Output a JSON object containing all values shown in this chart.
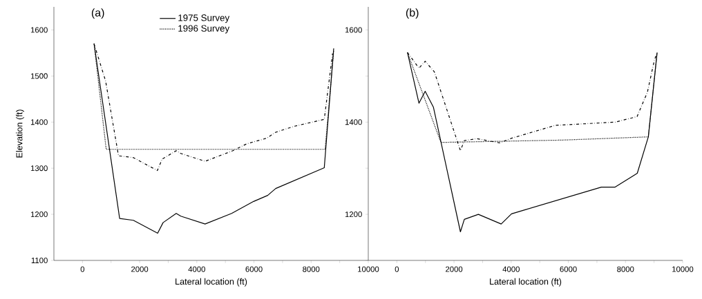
{
  "chart_data": [
    {
      "type": "line",
      "title": "(a)",
      "xlabel": "Lateral location (ft)",
      "ylabel": "Elevation (ft)",
      "xlim": [
        -1000,
        10000
      ],
      "ylim": [
        1100,
        1650
      ],
      "xticks": [
        0,
        {
          "value": 1000,
          "label": null
        },
        2000,
        {
          "value": 3000,
          "label": null
        },
        4000,
        {
          "value": 5000,
          "label": null
        },
        6000,
        {
          "value": 7000,
          "label": null
        },
        8000,
        {
          "value": 9000,
          "label": null
        },
        10000
      ],
      "yticks": [
        1100,
        1200,
        1300,
        1400,
        1500,
        1600
      ],
      "legend": "top",
      "grid": false,
      "series": [
        {
          "name": "1975 Survey",
          "color": "#000000",
          "line_style": "solid",
          "x": [
            405,
            1300,
            1780,
            2630,
            2820,
            3280,
            3440,
            4290,
            5220,
            5990,
            6480,
            6760,
            8460,
            8790
          ],
          "values": [
            1570,
            1191,
            1187,
            1159,
            1182,
            1202,
            1196,
            1179,
            1202,
            1228,
            1241,
            1256,
            1301,
            1560
          ]
        },
        {
          "name": "1996 Survey",
          "color": "#000000",
          "line_style": "dotted",
          "x": [
            405,
            830,
            8490,
            8790
          ],
          "values": [
            1570,
            1341,
            1341,
            1555
          ]
        },
        {
          "color": "#000000",
          "line_style": "dashdot",
          "x": [
            405,
            810,
            1260,
            1780,
            2620,
            2790,
            3280,
            3440,
            4290,
            5260,
            5750,
            6440,
            6760,
            7410,
            8460,
            8750
          ],
          "values": [
            1570,
            1489,
            1327,
            1323,
            1295,
            1320,
            1338,
            1332,
            1315,
            1338,
            1353,
            1365,
            1378,
            1391,
            1406,
            1549
          ]
        }
      ]
    },
    {
      "type": "line",
      "title": "(b)",
      "xlabel": "Lateral location (ft)",
      "xlim": [
        -1000,
        10000
      ],
      "ylim": [
        1100,
        1650
      ],
      "xticks": [
        0,
        {
          "value": 1000,
          "label": null
        },
        2000,
        {
          "value": 3000,
          "label": null
        },
        4000,
        {
          "value": 5000,
          "label": null
        },
        6000,
        {
          "value": 7000,
          "label": null
        },
        8000,
        {
          "value": 9000,
          "label": null
        },
        10000
      ],
      "yticks": [
        {
          "value": 1100,
          "label": null
        },
        1200,
        {
          "value": 1300,
          "label": null
        },
        1400,
        {
          "value": 1500,
          "label": null
        },
        1600
      ],
      "grid": false,
      "series": [
        {
          "color": "#000000",
          "line_style": "solid",
          "x": [
            371,
            774,
            991,
            1281,
            2224,
            2361,
            2852,
            3650,
            4013,
            4496,
            7155,
            7638,
            8412,
            8799,
            9106
          ],
          "values": [
            1551,
            1441,
            1467,
            1432,
            1162,
            1189,
            1200,
            1179,
            1201,
            1210,
            1259,
            1259,
            1289,
            1368,
            1551
          ]
        },
        {
          "color": "#000000",
          "line_style": "dotted",
          "x": [
            371,
            1542,
            5777,
            8799,
            9106
          ],
          "values": [
            1551,
            1356,
            1361,
            1368,
            1551
          ]
        },
        {
          "color": "#000000",
          "line_style": "dashdot",
          "x": [
            371,
            774,
            991,
            1313,
            2224,
            2361,
            2804,
            3594,
            4013,
            5544,
            7639,
            8405,
            8767,
            9009,
            9106
          ],
          "values": [
            1551,
            1517,
            1532,
            1509,
            1338,
            1360,
            1364,
            1355,
            1365,
            1393,
            1400,
            1412,
            1465,
            1534,
            1551
          ]
        }
      ]
    }
  ]
}
